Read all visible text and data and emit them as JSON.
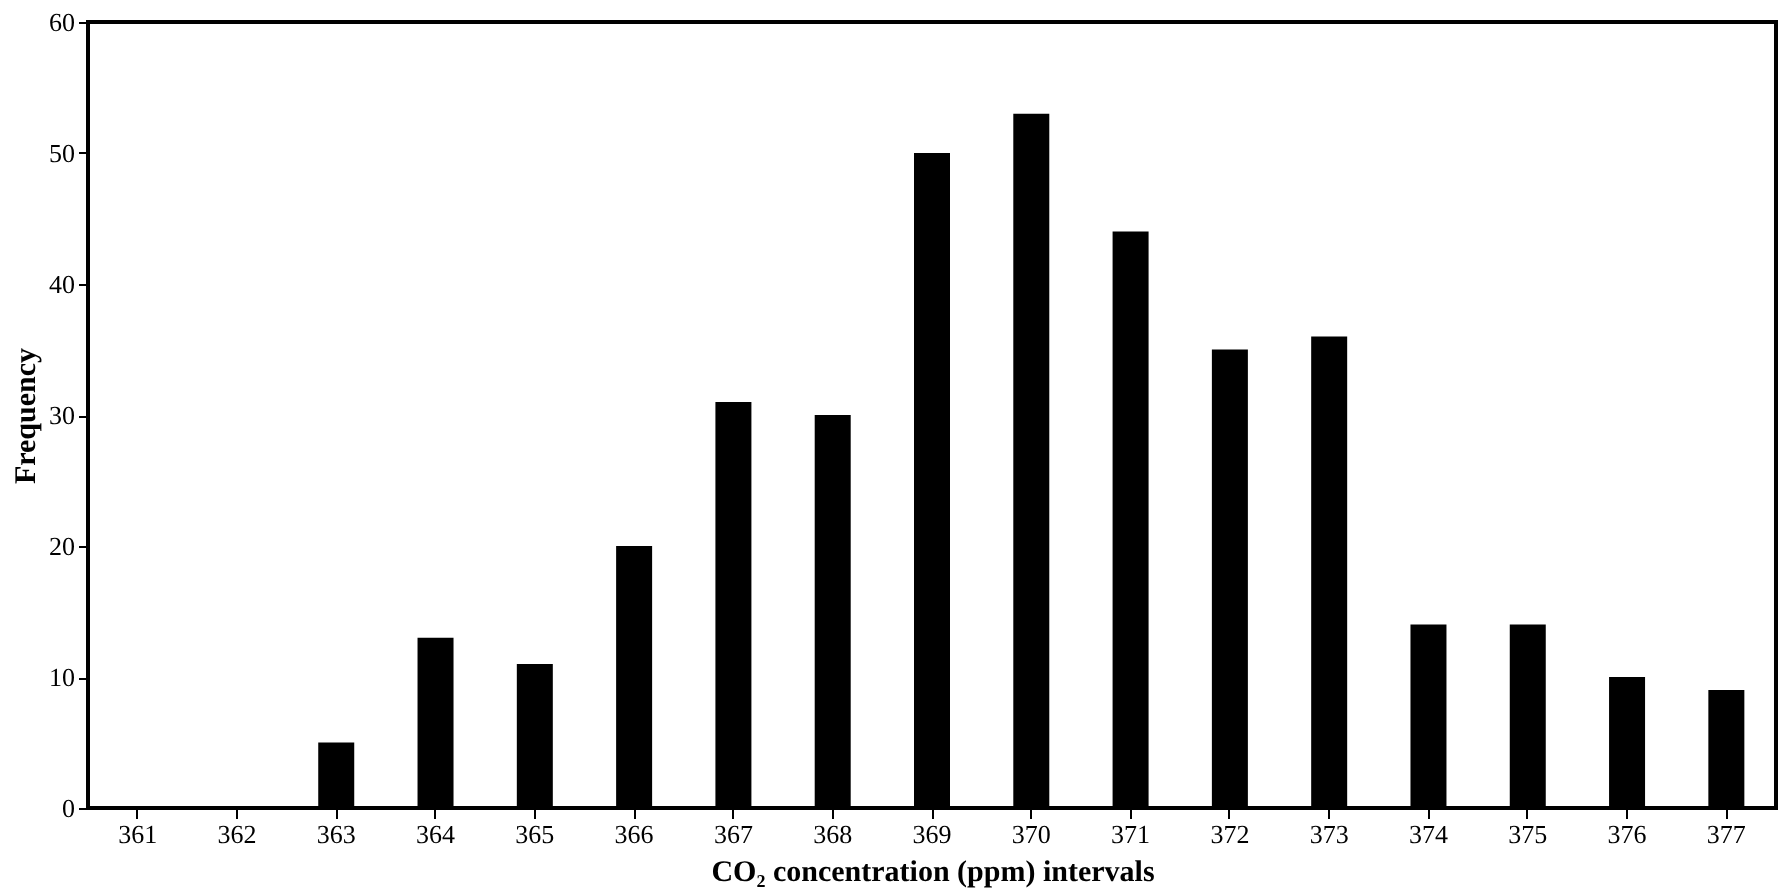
{
  "chart_data": {
    "type": "bar",
    "xlabel": "CO₂ concentration (ppm) intervals",
    "ylabel": "Frequency",
    "categories": [
      "361",
      "362",
      "363",
      "364",
      "365",
      "366",
      "367",
      "368",
      "369",
      "370",
      "371",
      "372",
      "373",
      "374",
      "375",
      "376",
      "377"
    ],
    "values": [
      0,
      0,
      5,
      13,
      11,
      20,
      31,
      30,
      50,
      53,
      44,
      35,
      36,
      14,
      14,
      10,
      9
    ],
    "color": "#000000",
    "ylim": [
      0,
      60
    ],
    "yticks": [
      0,
      10,
      20,
      30,
      40,
      50,
      60
    ],
    "grid": false
  }
}
